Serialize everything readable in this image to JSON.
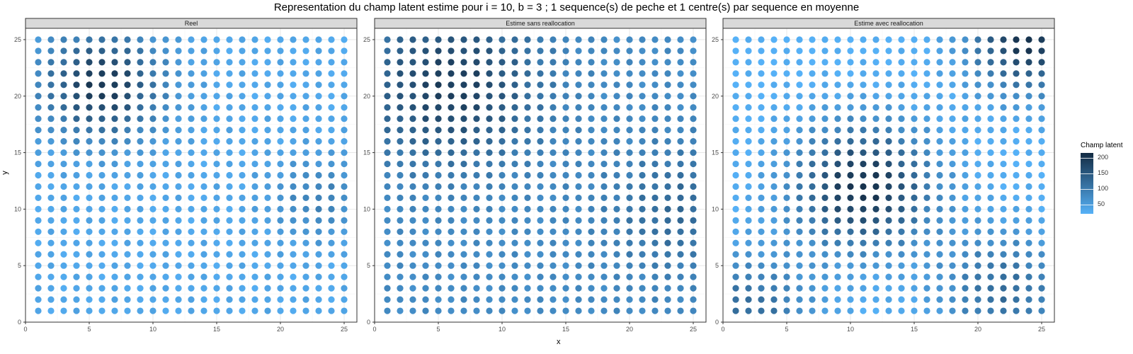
{
  "chart_data": {
    "type": "scatter",
    "title": "Representation du champ latent estime pour i = 10, b = 3 ; 1 sequence(s) de peche et 1 centre(s) par sequence en moyenne",
    "xlabel": "x",
    "ylabel": "y",
    "xlim": [
      0,
      26
    ],
    "ylim": [
      0,
      26
    ],
    "x_ticks": [
      0,
      5,
      10,
      15,
      20,
      25
    ],
    "y_ticks": [
      0,
      5,
      10,
      15,
      20,
      25
    ],
    "grid": true,
    "grid_points": {
      "x_from": 1,
      "x_to": 25,
      "y_from": 1,
      "y_to": 25
    },
    "legend": {
      "title": "Champ latent",
      "position": "right",
      "ticks": [
        50,
        100,
        150,
        200
      ],
      "range": [
        20,
        215
      ],
      "low_color": "#56b1f7",
      "high_color": "#132b43"
    },
    "panels": [
      {
        "name": "Reel",
        "hotspots": [
          {
            "cx": 6,
            "cy": 21,
            "peak": 200,
            "spread": 3.2
          },
          {
            "cx": 23,
            "cy": 11,
            "peak": 90,
            "spread": 2.5
          }
        ],
        "base": 35
      },
      {
        "name": "Estime sans reallocation",
        "hotspots": [
          {
            "cx": 6,
            "cy": 21,
            "peak": 190,
            "spread": 4.5
          },
          {
            "cx": 24,
            "cy": 10,
            "peak": 125,
            "spread": 3.8
          }
        ],
        "base": 75
      },
      {
        "name": "Estime avec reallocation",
        "hotspots": [
          {
            "cx": 11,
            "cy": 12,
            "peak": 205,
            "spread": 3.8
          },
          {
            "cx": 24,
            "cy": 25,
            "peak": 205,
            "spread": 3.2
          },
          {
            "cx": 2,
            "cy": 1,
            "peak": 120,
            "spread": 3.5
          },
          {
            "cx": 22,
            "cy": 3,
            "peak": 120,
            "spread": 3.5
          }
        ],
        "base": 22
      }
    ]
  }
}
